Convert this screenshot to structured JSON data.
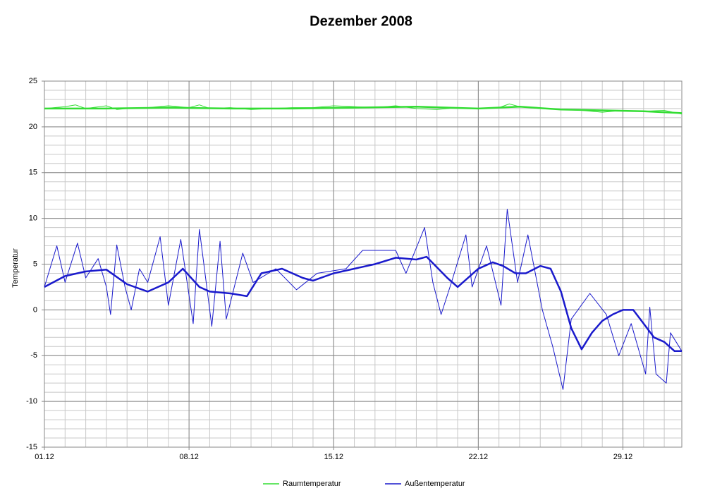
{
  "chart_data": {
    "type": "line",
    "title": "Dezember 2008",
    "y_label": "Temperatur",
    "xlim": [
      0,
      30.85
    ],
    "xticks": [
      {
        "value": 0,
        "label": "01.12"
      },
      {
        "value": 7,
        "label": "08.12"
      },
      {
        "value": 14,
        "label": "15.12"
      },
      {
        "value": 21,
        "label": "22.12"
      },
      {
        "value": 28,
        "label": "29.12"
      }
    ],
    "ylim": [
      -15,
      25
    ],
    "yticks": [
      -15,
      -10,
      -5,
      0,
      5,
      10,
      15,
      20,
      25
    ],
    "grid": true,
    "minor_grid": {
      "x": 1,
      "y": 1
    },
    "legend": "bottom",
    "series": [
      {
        "name": "Raumtemperatur",
        "color": "#33dd33",
        "x": [
          0,
          1,
          1.5,
          2,
          3,
          3.5,
          4,
          5,
          6,
          7,
          7.5,
          8,
          9,
          10,
          11,
          12,
          13,
          14,
          15,
          16,
          17,
          18,
          19,
          20,
          21,
          22,
          22.5,
          23,
          24,
          25,
          26,
          27,
          28,
          29,
          30,
          30.85
        ],
        "values": [
          22,
          22.2,
          22.4,
          22,
          22.3,
          21.9,
          22,
          22.1,
          22.3,
          22.1,
          22.4,
          22,
          22.1,
          21.9,
          22,
          22.1,
          22.1,
          22.3,
          22.2,
          22.1,
          22.3,
          22,
          21.9,
          22.1,
          22,
          22.1,
          22.5,
          22.2,
          22,
          21.9,
          21.8,
          21.6,
          21.8,
          21.7,
          21.8,
          21.4
        ],
        "smooth_x": [
          0,
          3,
          6,
          9,
          12,
          15,
          18,
          21,
          23,
          25,
          27,
          29,
          30.85
        ],
        "smooth_values": [
          22,
          22,
          22.1,
          22,
          22,
          22.1,
          22.2,
          22,
          22.2,
          21.9,
          21.8,
          21.7,
          21.5
        ]
      },
      {
        "name": "Außentemperatur",
        "color": "#1a1acc",
        "x": [
          0,
          0.6,
          1,
          1.6,
          2,
          2.6,
          3,
          3.2,
          3.5,
          3.9,
          4.2,
          4.6,
          5,
          5.6,
          6,
          6.6,
          7.2,
          7.5,
          8.1,
          8.5,
          8.8,
          9.6,
          10.1,
          11.2,
          12.2,
          13.2,
          14.6,
          15.4,
          17,
          17.5,
          18.4,
          18.8,
          19.2,
          19.7,
          20.4,
          20.7,
          21.4,
          22.1,
          22.4,
          22.9,
          23.4,
          24.1,
          24.6,
          25.1,
          25.5,
          26.4,
          27.2,
          27.8,
          28.4,
          29.1,
          29.3,
          29.6,
          30.1,
          30.3,
          30.85
        ],
        "values": [
          2.5,
          7,
          3,
          7.3,
          3.5,
          5.6,
          2.5,
          -0.5,
          7.1,
          2.5,
          0,
          4.5,
          3,
          8,
          0.5,
          7.7,
          -1.5,
          8.8,
          -1.8,
          7.5,
          -1,
          6.2,
          3,
          4.5,
          2.2,
          4,
          4.5,
          6.5,
          6.5,
          4,
          9,
          3,
          -0.5,
          3,
          8.2,
          2.5,
          7,
          0.5,
          11,
          3,
          8.2,
          0,
          -4,
          -8.7,
          -1,
          1.8,
          -0.5,
          -5,
          -1.5,
          -7,
          0.3,
          -7,
          -8,
          -2.5,
          -4.5
        ],
        "smooth_x": [
          0,
          1,
          2,
          3,
          4,
          5,
          6,
          6.7,
          7.5,
          8,
          9,
          9.8,
          10.5,
          11.5,
          12.5,
          13,
          14,
          15,
          16,
          17,
          18,
          18.5,
          19.5,
          20,
          21,
          21.7,
          22.2,
          22.8,
          23.3,
          24,
          24.5,
          25,
          25.5,
          26,
          26.5,
          27,
          27.5,
          28,
          28.5,
          29,
          29.5,
          30,
          30.5,
          30.85
        ],
        "smooth_values": [
          2.5,
          3.7,
          4.2,
          4.4,
          2.8,
          2,
          3,
          4.5,
          2.5,
          2,
          1.8,
          1.5,
          4,
          4.5,
          3.5,
          3.2,
          4,
          4.5,
          5,
          5.7,
          5.5,
          5.8,
          3.5,
          2.5,
          4.5,
          5.2,
          4.8,
          4,
          4,
          4.8,
          4.5,
          2,
          -2,
          -4.3,
          -2.5,
          -1.2,
          -0.5,
          0,
          0,
          -1.5,
          -3,
          -3.5,
          -4.5,
          -4.5
        ]
      }
    ]
  }
}
